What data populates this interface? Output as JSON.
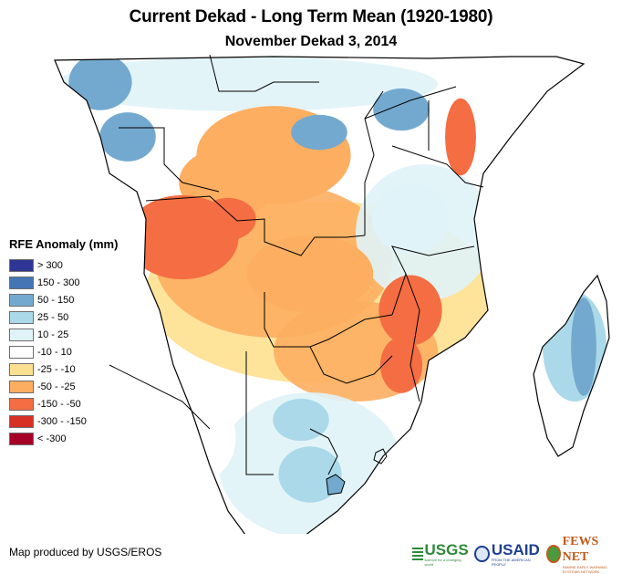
{
  "header": {
    "title": "Current Dekad - Long Term Mean (1920-1980)",
    "subtitle": "November Dekad 3, 2014"
  },
  "legend": {
    "title": "RFE Anomaly (mm)",
    "items": [
      {
        "label": "> 300",
        "color": "#2f3595"
      },
      {
        "label": "150 - 300",
        "color": "#4575b4"
      },
      {
        "label": "50 - 150",
        "color": "#74a9cf"
      },
      {
        "label": "25 - 50",
        "color": "#abd9e9"
      },
      {
        "label": "10 - 25",
        "color": "#e0f3f8"
      },
      {
        "label": "-10 - 10",
        "color": "#ffffff"
      },
      {
        "label": "-25 - -10",
        "color": "#fee090"
      },
      {
        "label": "-50 - -25",
        "color": "#fdae61"
      },
      {
        "label": "-150 - -50",
        "color": "#f46d43"
      },
      {
        "label": "-300 - -150",
        "color": "#d73027"
      },
      {
        "label": "< -300",
        "color": "#a50026"
      }
    ]
  },
  "map": {
    "region": "Southern and Central Africa",
    "zones": [
      {
        "area": "Gabon / Cameroon",
        "class": "50 - 150"
      },
      {
        "area": "Central DRC",
        "class": "-50 - -25"
      },
      {
        "area": "Angola",
        "class": "-150 - -50"
      },
      {
        "area": "Zambia",
        "class": "-50 - -25"
      },
      {
        "area": "Mozambique",
        "class": "-150 - -50"
      },
      {
        "area": "Kenya (east)",
        "class": "-150 - -50"
      },
      {
        "area": "Uganda / South Sudan",
        "class": "50 - 150"
      },
      {
        "area": "Tanzania",
        "class": "10 - 25"
      },
      {
        "area": "Botswana / South Africa",
        "class": "25 - 50"
      },
      {
        "area": "Namibia (south)",
        "class": "-10 - 10"
      },
      {
        "area": "Madagascar (east)",
        "class": "50 - 150"
      }
    ]
  },
  "footer": {
    "credit": "Map produced by USGS/EROS",
    "logos": [
      {
        "name": "USGS",
        "tagline": "science for a changing world"
      },
      {
        "name": "USAID",
        "tagline": "FROM THE AMERICAN PEOPLE"
      },
      {
        "name": "FEWS NET",
        "tagline": "FAMINE EARLY WARNING SYSTEMS NETWORK"
      }
    ]
  }
}
